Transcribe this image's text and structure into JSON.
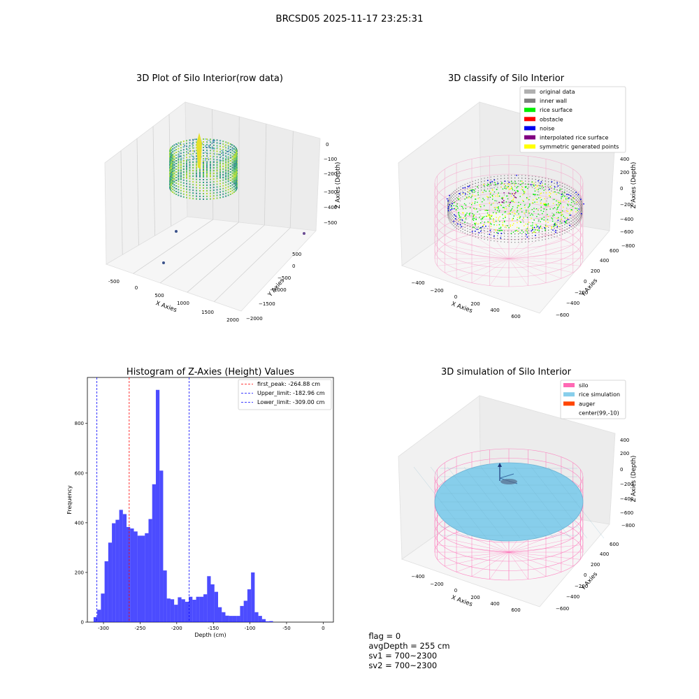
{
  "figure_title": "BRCSD05 2025-11-17 23:25:31",
  "panels": {
    "raw": {
      "title": "3D Plot of Silo Interior(row data)",
      "xlabel": "X Axies",
      "ylabel": "Y Axies",
      "zlabel": "Z Axies (Depth)",
      "x_ticks": [
        "-500",
        "0",
        "500",
        "1000",
        "1500",
        "2000"
      ],
      "y_ticks": [
        "500",
        "0",
        "−500",
        "−1000",
        "−1500",
        "−2000"
      ],
      "z_ticks": [
        "0",
        "−100",
        "−200",
        "−300",
        "−400",
        "−500"
      ]
    },
    "classify": {
      "title": "3D classify of Silo Interior",
      "xlabel": "X Axies",
      "ylabel": "Y Axies",
      "zlabel": "Z Axies (Depth)",
      "x_ticks": [
        "−400",
        "−200",
        "0",
        "200",
        "400",
        "600"
      ],
      "y_ticks": [
        "600",
        "400",
        "200",
        "0",
        "−200",
        "−400",
        "−600"
      ],
      "z_ticks": [
        "400",
        "200",
        "0",
        "−200",
        "−400",
        "−600",
        "−800"
      ],
      "legend": [
        {
          "label": "original data",
          "color": "#b0b0b0"
        },
        {
          "label": "inner wall",
          "color": "#808080"
        },
        {
          "label": "rice surface",
          "color": "#00ee00"
        },
        {
          "label": "obstacle",
          "color": "#ff0000"
        },
        {
          "label": "noise",
          "color": "#0000ee"
        },
        {
          "label": "interpolated rice surface",
          "color": "#800080"
        },
        {
          "label": "symmetric generated points",
          "color": "#ffff00"
        }
      ]
    },
    "simulation": {
      "title": "3D simulation of Silo Interior",
      "xlabel": "X Axies",
      "ylabel": "Y Axies",
      "zlabel": "Z Axies (Depth)",
      "x_ticks": [
        "−400",
        "−200",
        "0",
        "200",
        "400",
        "600"
      ],
      "y_ticks": [
        "600",
        "400",
        "200",
        "0",
        "−200",
        "−400",
        "−600"
      ],
      "z_ticks": [
        "400",
        "200",
        "0",
        "−200",
        "−400",
        "−600",
        "−800"
      ],
      "legend": [
        {
          "label": "silo",
          "color": "#ff69b4"
        },
        {
          "label": "rice simulation",
          "color": "#87ceeb"
        },
        {
          "label": "auger",
          "color": "#ff4500"
        },
        {
          "label": "center(99,-10)",
          "color": ""
        }
      ]
    }
  },
  "chart_data": {
    "type": "bar",
    "title": "Histogram of Z-Axies (Height) Values",
    "xlabel": "Depth (cm)",
    "ylabel": "Frequency",
    "xlim": [
      -322,
      14
    ],
    "ylim": [
      0,
      985
    ],
    "x_ticks": [
      -300,
      -250,
      -200,
      -150,
      -100,
      -50,
      0
    ],
    "y_ticks": [
      0,
      200,
      400,
      600,
      800
    ],
    "bar_color": "#0000ff",
    "bin_start": -313.5,
    "bin_width": 5,
    "values": [
      20,
      50,
      115,
      245,
      320,
      398,
      412,
      452,
      435,
      383,
      377,
      365,
      348,
      348,
      358,
      415,
      555,
      935,
      610,
      208,
      95,
      92,
      70,
      100,
      92,
      82,
      102,
      90,
      102,
      102,
      112,
      185,
      152,
      122,
      60,
      40,
      26,
      25,
      25,
      25,
      65,
      86,
      132,
      200,
      40,
      25,
      12,
      3,
      4
    ],
    "vlines": [
      {
        "label": "first_peak: -264.88 cm",
        "x": -264.88,
        "color": "#ff0000"
      },
      {
        "label": "Upper_limit: -182.96 cm",
        "x": -182.96,
        "color": "#0000ff"
      },
      {
        "label": "Lower_limit: -309.00 cm",
        "x": -309.0,
        "color": "#0000ff"
      }
    ]
  },
  "footer": {
    "flag": "flag = 0",
    "avg_depth": "avgDepth = 255 cm",
    "sv1": "sv1 = 700~2300",
    "sv2": "sv2 = 700~2300"
  }
}
